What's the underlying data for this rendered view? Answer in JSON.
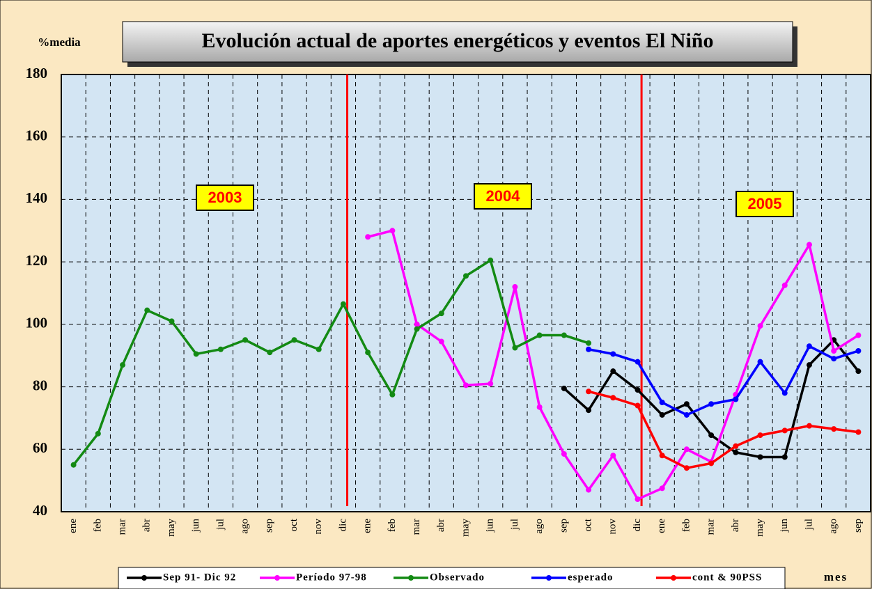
{
  "chart_data": {
    "type": "line",
    "title": "Evolución actual de aportes energéticos y eventos El Niño",
    "y_label": "%media",
    "x_label": "mes",
    "categories": [
      "ene",
      "feb",
      "mar",
      "abr",
      "may",
      "jun",
      "jul",
      "ago",
      "sep",
      "oct",
      "nov",
      "dic",
      "ene",
      "feb",
      "mar",
      "abr",
      "may",
      "jun",
      "jul",
      "ago",
      "sep",
      "oct",
      "nov",
      "dic",
      "ene",
      "feb",
      "mar",
      "abr",
      "may",
      "jun",
      "jul",
      "ago",
      "sep"
    ],
    "annotations": [
      "2003",
      "2004",
      "2005"
    ],
    "ylim": [
      40,
      180
    ],
    "yticks": [
      40,
      60,
      80,
      100,
      120,
      140,
      160,
      180
    ],
    "grid": true,
    "legend": "bottom",
    "series": [
      {
        "name": "Sep 91- Dic 92",
        "color": "#000000",
        "values": [
          null,
          null,
          null,
          null,
          null,
          null,
          null,
          null,
          null,
          null,
          null,
          null,
          null,
          null,
          null,
          null,
          null,
          null,
          null,
          null,
          79.5,
          72.5,
          85,
          79,
          71,
          74.5,
          64.5,
          59,
          57.5,
          57.5,
          87,
          95,
          85
        ]
      },
      {
        "name": "Período 97-98",
        "color": "#ff00ff",
        "values": [
          null,
          null,
          null,
          null,
          null,
          null,
          null,
          null,
          null,
          null,
          null,
          null,
          128,
          130,
          100,
          94.5,
          80.5,
          81,
          112,
          73.5,
          58.5,
          47,
          58,
          44,
          47.5,
          60,
          56,
          77.5,
          99.5,
          112.5,
          125.5,
          91.5,
          96.5
        ]
      },
      {
        "name": "Observado",
        "color": "#138a13",
        "values": [
          55,
          65,
          87,
          104.5,
          101,
          90.5,
          92,
          95,
          91,
          95,
          92,
          106.5,
          91,
          77.5,
          98.5,
          103.5,
          115.5,
          120.5,
          92.5,
          96.5,
          96.5,
          94,
          null,
          null,
          null,
          null,
          null,
          null,
          null,
          null,
          null,
          null,
          null
        ]
      },
      {
        "name": "esperado",
        "color": "#0000ff",
        "values": [
          null,
          null,
          null,
          null,
          null,
          null,
          null,
          null,
          null,
          null,
          null,
          null,
          null,
          null,
          null,
          null,
          null,
          null,
          null,
          null,
          null,
          92,
          90.5,
          88,
          75,
          71,
          74.5,
          76,
          88,
          78,
          93,
          89,
          91.5
        ]
      },
      {
        "name": "cont & 90PSS",
        "color": "#ff0000",
        "values": [
          null,
          null,
          null,
          null,
          null,
          null,
          null,
          null,
          null,
          null,
          null,
          null,
          null,
          null,
          null,
          null,
          null,
          null,
          null,
          null,
          null,
          78.5,
          76.5,
          74,
          58,
          54,
          55.5,
          61,
          64.5,
          66,
          67.5,
          66.5,
          65.5
        ]
      }
    ]
  }
}
